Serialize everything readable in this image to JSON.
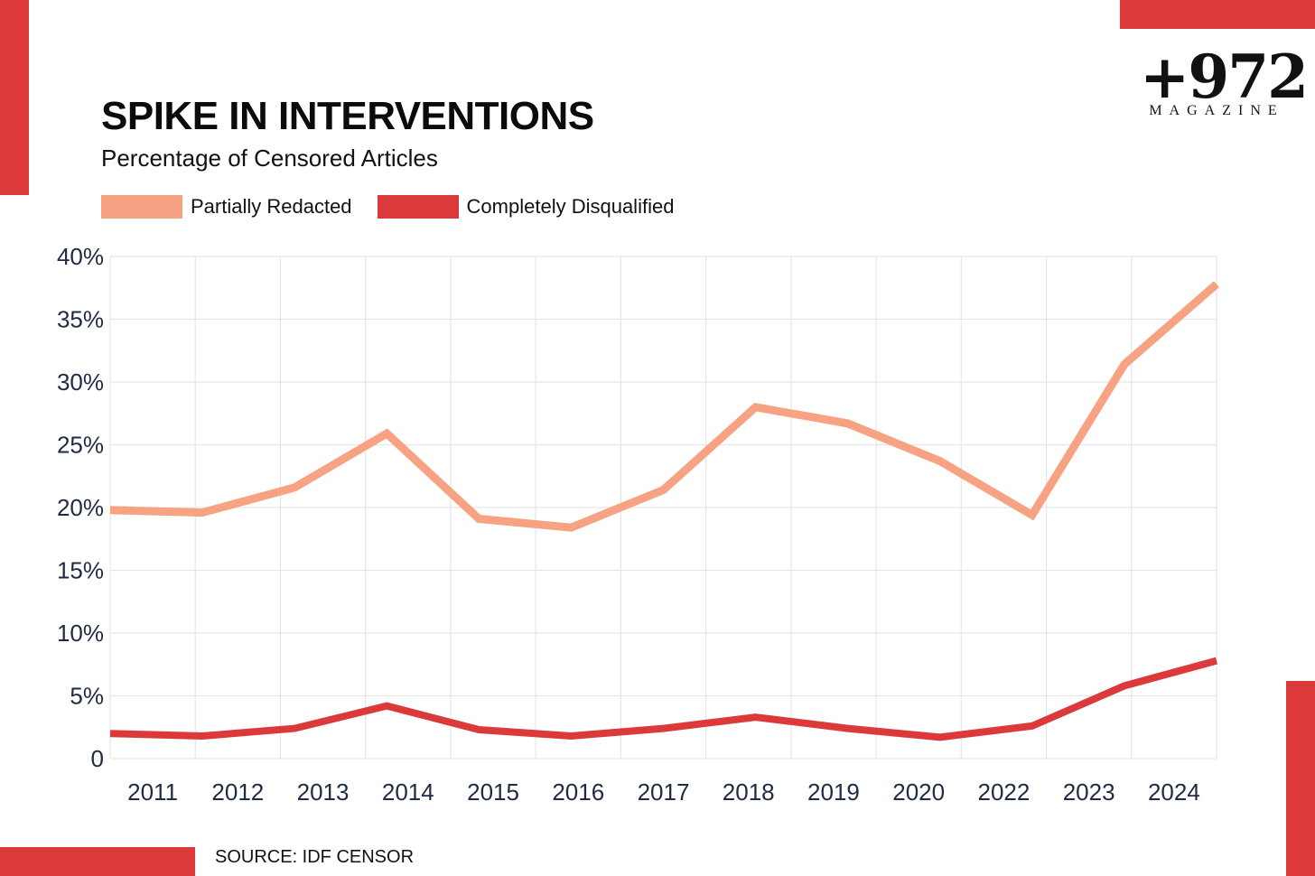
{
  "title": "SPIKE IN INTERVENTIONS",
  "subtitle": "Percentage of Censored Articles",
  "source": "SOURCE: IDF CENSOR",
  "logo": {
    "main": "+972",
    "sub": "MAGAZINE"
  },
  "colors": {
    "accent": "#dc3a3a",
    "partial": "#f7a383",
    "complete": "#dc3a3a",
    "axis_text": "#1f2a44",
    "grid": "#e6e6e6"
  },
  "legend": [
    {
      "label": "Partially Redacted",
      "color": "#f7a383"
    },
    {
      "label": "Completely Disqualified",
      "color": "#dc3a3a"
    }
  ],
  "chart_data": {
    "type": "line",
    "title": "SPIKE IN INTERVENTIONS",
    "subtitle": "Percentage of Censored Articles",
    "categories": [
      "2011",
      "2012",
      "2013",
      "2014",
      "2015",
      "2016",
      "2017",
      "2018",
      "2019",
      "2020",
      "2022",
      "2023",
      "2024"
    ],
    "series": [
      {
        "name": "Partially Redacted",
        "color": "#f7a383",
        "values": [
          19.8,
          19.6,
          21.6,
          25.9,
          19.1,
          18.4,
          21.4,
          28.0,
          26.7,
          23.7,
          19.4,
          31.4,
          37.8
        ]
      },
      {
        "name": "Completely Disqualified",
        "color": "#dc3a3a",
        "values": [
          2.0,
          1.8,
          2.4,
          4.2,
          2.3,
          1.8,
          2.4,
          3.3,
          2.4,
          1.7,
          2.6,
          5.8,
          7.8
        ]
      }
    ],
    "yticks": [
      "0",
      "5%",
      "10%",
      "15%",
      "20%",
      "25%",
      "30%",
      "35%",
      "40%"
    ],
    "ylim": [
      0,
      40
    ],
    "grid": true,
    "legend_position": "top-left"
  }
}
